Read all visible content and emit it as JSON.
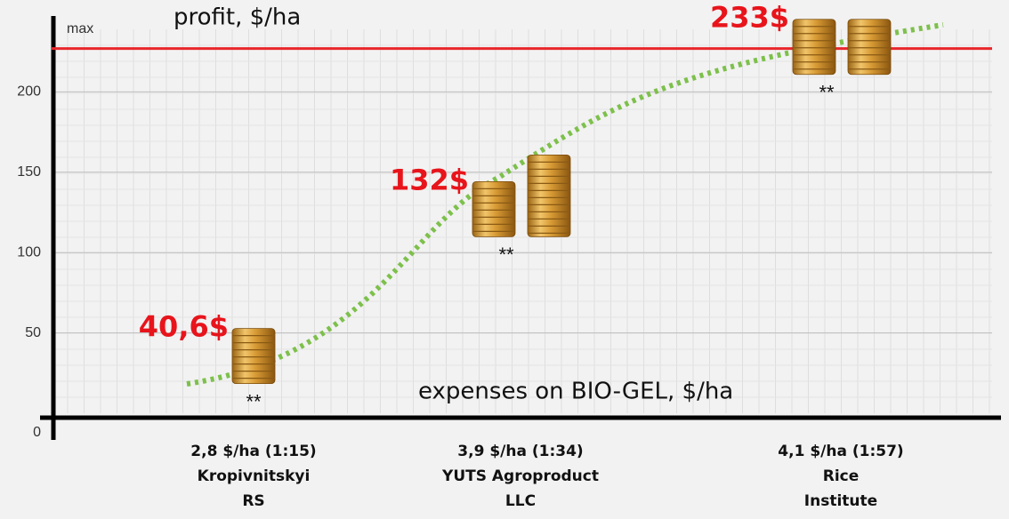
{
  "chart_data": {
    "type": "coins",
    "y_label": "profit, $/ha",
    "x_label": "expenses on BIO-GEL, $/ha",
    "categories": [
      [
        "2,8 $/ha (1:15)",
        "Kropivnitskyi",
        "RS"
      ],
      [
        "3,9 $/ha (1:34)",
        "YUTS Agroproduct",
        "LLC"
      ],
      [
        "4,1 $/ha (1:57)",
        "Rice",
        "Institute"
      ]
    ],
    "values": [
      40.6,
      132,
      233
    ],
    "value_labels": [
      "40,6$",
      "132$",
      "233$"
    ],
    "notes": [
      "**",
      "**",
      "**"
    ],
    "stacks": [
      1,
      2,
      2
    ],
    "max_line": {
      "value": 227,
      "label": "max",
      "color": "#e8262b"
    },
    "trend_color": "#7dc04b",
    "ylim": [
      0,
      250
    ],
    "yticks": [
      0,
      50,
      100,
      150,
      200
    ],
    "grid": true
  }
}
